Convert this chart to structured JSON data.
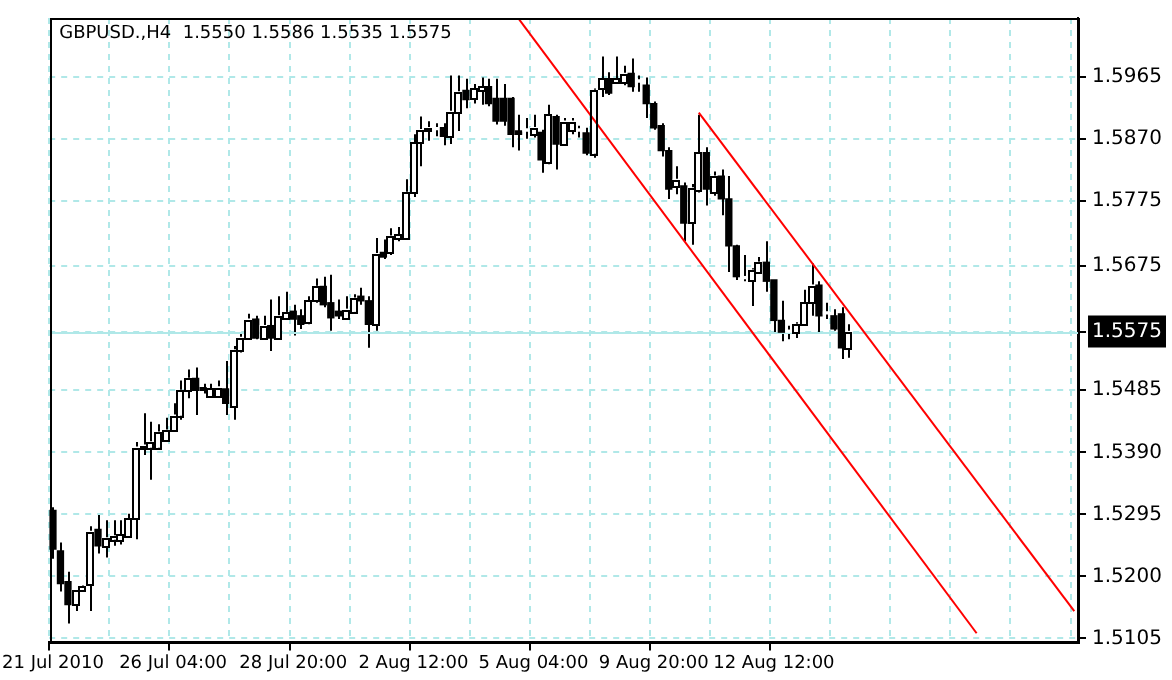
{
  "chart_data": {
    "type": "candlestick",
    "title": "GBPUSD.,H4  1.5550 1.5586 1.5535 1.5575",
    "colors": [
      "#000000",
      "#000000",
      "#000000",
      "#ffffff",
      "#ffffff",
      "#ffffff",
      "#000000",
      "#ffffff",
      "#ffffff",
      "#ffffff",
      "#ffffff",
      "#ffffff",
      "#ffffff",
      "#ffffff",
      "#ffffff",
      "#ffffff",
      "#ffffff",
      "#ffffff",
      "#ffffff",
      "#000000",
      "#000000",
      "#ffffff",
      "#ffffff",
      "#000000",
      "#ffffff",
      "#ffffff",
      "#ffffff",
      "#000000",
      "#ffffff",
      "#000000",
      "#ffffff",
      "#ffffff",
      "#000000",
      "#000000",
      "#ffffff",
      "#ffffff",
      "#000000",
      "#000000",
      "#000000",
      "#ffffff",
      "#ffffff",
      "#000000",
      "#000000",
      "#ffffff",
      "#000000",
      "#ffffff",
      "#ffffff",
      "#ffffff",
      "#ffffff",
      "#ffffff",
      "#ffffff",
      "#ffffff",
      "#000000",
      "#ffffff",
      "#ffffff",
      "#000000",
      "#ffffff",
      "#ffffff",
      "#000000",
      "#000000",
      "#000000",
      "#000000",
      "#000000",
      "#ffffff",
      "#ffffff",
      "#000000",
      "#ffffff",
      "#000000",
      "#ffffff",
      "#ffffff",
      "#ffffff",
      "#000000",
      "#ffffff",
      "#ffffff",
      "#000000",
      "#ffffff",
      "#ffffff",
      "#000000",
      "#ffffff",
      "#000000",
      "#000000",
      "#000000",
      "#000000",
      "#ffffff",
      "#000000",
      "#ffffff",
      "#ffffff",
      "#000000",
      "#ffffff",
      "#000000",
      "#000000",
      "#000000",
      "#ffffff",
      "#ffffff",
      "#ffffff",
      "#000000",
      "#000000",
      "#000000",
      "#ffffff",
      "#ffffff",
      "#ffffff",
      "#ffffff",
      "#000000",
      "#ffffff",
      "#000000",
      "#000000",
      "#ffffff",
      null,
      null,
      null,
      null,
      null,
      null,
      null,
      null,
      null,
      null,
      null,
      null,
      null,
      null,
      null,
      null,
      null,
      null,
      null,
      null,
      null,
      null,
      null,
      null,
      null,
      null,
      null,
      null,
      null,
      null
    ],
    "categories": [
      "21 Jul 2010",
      null,
      null,
      null,
      null,
      null,
      null,
      null,
      null,
      null,
      null,
      null,
      null,
      null,
      null,
      null,
      "26 Jul 04:00",
      null,
      null,
      null,
      null,
      null,
      null,
      null,
      null,
      null,
      null,
      null,
      null,
      null,
      null,
      null,
      "28 Jul 20:00",
      null,
      null,
      null,
      null,
      null,
      null,
      null,
      null,
      null,
      null,
      null,
      null,
      null,
      null,
      null,
      "2 Aug 12:00",
      null,
      null,
      null,
      null,
      null,
      null,
      null,
      null,
      null,
      null,
      null,
      null,
      null,
      null,
      null,
      "5 Aug 04:00",
      null,
      null,
      null,
      null,
      null,
      null,
      null,
      null,
      null,
      null,
      null,
      null,
      null,
      null,
      null,
      "9 Aug 20:00",
      null,
      null,
      null,
      null,
      null,
      null,
      null,
      null,
      null,
      null,
      null,
      null,
      null,
      null,
      null,
      "12 Aug 12:00",
      null,
      null,
      null,
      null,
      null,
      null,
      null,
      null,
      null,
      null,
      null,
      null,
      null,
      null,
      null,
      null,
      null,
      null,
      null,
      null,
      null,
      null,
      null,
      null,
      null,
      null,
      null,
      null,
      null,
      null,
      null,
      null,
      null,
      null,
      null,
      null,
      null,
      null,
      null,
      null
    ],
    "ohlc": [
      [
        1.5301,
        1.5306,
        1.5227,
        1.5242
      ],
      [
        1.5239,
        1.5252,
        1.5177,
        1.5189
      ],
      [
        1.5192,
        1.5207,
        1.5128,
        1.5157
      ],
      [
        1.5157,
        1.5179,
        1.5147,
        1.5179
      ],
      [
        1.5179,
        1.5187,
        1.5177,
        1.5185
      ],
      [
        1.5187,
        1.5277,
        1.5147,
        1.5269
      ],
      [
        1.5272,
        1.5294,
        1.5235,
        1.5247
      ],
      [
        1.5247,
        1.5286,
        1.5229,
        1.5259
      ],
      [
        1.5257,
        1.5286,
        1.5247,
        1.5262
      ],
      [
        1.5255,
        1.5286,
        1.5249,
        1.5264
      ],
      [
        1.5262,
        1.5296,
        1.5259,
        1.5288
      ],
      [
        1.5288,
        1.5406,
        1.5257,
        1.5398
      ],
      [
        1.5396,
        1.545,
        1.5386,
        1.5401
      ],
      [
        1.5398,
        1.5437,
        1.5348,
        1.5406
      ],
      [
        1.5398,
        1.5433,
        1.5396,
        1.5421
      ],
      [
        1.5408,
        1.5443,
        1.5406,
        1.5424
      ],
      [
        1.5424,
        1.5465,
        1.5421,
        1.5447
      ],
      [
        1.5447,
        1.55,
        1.544,
        1.5485
      ],
      [
        1.5485,
        1.5517,
        1.5473,
        1.5503
      ],
      [
        1.5503,
        1.552,
        1.5447,
        1.5485
      ],
      [
        1.5489,
        1.5495,
        1.548,
        1.5485
      ],
      [
        1.5477,
        1.5495,
        1.5475,
        1.5487
      ],
      [
        1.5477,
        1.55,
        1.5475,
        1.549
      ],
      [
        1.5487,
        1.553,
        1.5447,
        1.5465
      ],
      [
        1.546,
        1.5553,
        1.544,
        1.5547
      ],
      [
        1.5547,
        1.5574,
        1.5543,
        1.5566
      ],
      [
        1.5565,
        1.5602,
        1.5563,
        1.5594
      ],
      [
        1.5594,
        1.5599,
        1.5563,
        1.5565
      ],
      [
        1.5565,
        1.5599,
        1.5563,
        1.5584
      ],
      [
        1.5584,
        1.5624,
        1.5545,
        1.5565
      ],
      [
        1.5566,
        1.5629,
        1.5565,
        1.5599
      ],
      [
        1.5596,
        1.5636,
        1.5594,
        1.5604
      ],
      [
        1.5606,
        1.5616,
        1.5569,
        1.5594
      ],
      [
        1.5599,
        1.5609,
        1.5579,
        1.5586
      ],
      [
        1.5589,
        1.5629,
        1.5586,
        1.5622
      ],
      [
        1.5622,
        1.5656,
        1.5619,
        1.5644
      ],
      [
        1.5644,
        1.5659,
        1.5612,
        1.5616
      ],
      [
        1.5619,
        1.5662,
        1.5576,
        1.5596
      ],
      [
        1.5606,
        1.5624,
        1.5594,
        1.5599
      ],
      [
        1.5596,
        1.5629,
        1.5594,
        1.5609
      ],
      [
        1.5606,
        1.5632,
        1.5604,
        1.5626
      ],
      [
        1.5629,
        1.5642,
        1.5616,
        1.5622
      ],
      [
        1.5622,
        1.5629,
        1.555,
        1.5586
      ],
      [
        1.5586,
        1.5718,
        1.5576,
        1.5694
      ],
      [
        1.5696,
        1.5716,
        1.5686,
        1.5689
      ],
      [
        1.5696,
        1.5733,
        1.5692,
        1.5721
      ],
      [
        1.5718,
        1.5735,
        1.5713,
        1.5723
      ],
      [
        1.5718,
        1.5808,
        1.5715,
        1.5788
      ],
      [
        1.5788,
        1.5877,
        1.5781,
        1.5864
      ],
      [
        1.5864,
        1.5904,
        1.5828,
        1.5884
      ],
      [
        1.5882,
        1.5897,
        1.5867,
        1.5887
      ],
      [
        1.5884,
        1.5894,
        1.5874,
        1.5884
      ],
      [
        1.5887,
        1.5894,
        1.586,
        1.5874
      ],
      [
        1.5874,
        1.5967,
        1.5862,
        1.5912
      ],
      [
        1.5912,
        1.5967,
        1.5882,
        1.5942
      ],
      [
        1.5944,
        1.5962,
        1.5917,
        1.593
      ],
      [
        1.5932,
        1.5954,
        1.5924,
        1.5947
      ],
      [
        1.5944,
        1.5964,
        1.5922,
        1.595
      ],
      [
        1.595,
        1.5962,
        1.592,
        1.5924
      ],
      [
        1.5932,
        1.5962,
        1.5892,
        1.5897
      ],
      [
        1.5932,
        1.5954,
        1.589,
        1.5897
      ],
      [
        1.5932,
        1.5934,
        1.5857,
        1.5877
      ],
      [
        1.5882,
        1.5907,
        1.5852,
        1.5877
      ],
      [
        1.5882,
        1.5902,
        1.587,
        1.5882
      ],
      [
        1.5877,
        1.5907,
        1.5872,
        1.5887
      ],
      [
        1.588,
        1.5884,
        1.5818,
        1.5838
      ],
      [
        1.5835,
        1.5922,
        1.5831,
        1.5907
      ],
      [
        1.5904,
        1.5907,
        1.5823,
        1.5862
      ],
      [
        1.5862,
        1.5902,
        1.5859,
        1.5897
      ],
      [
        1.5882,
        1.5902,
        1.5877,
        1.5897
      ],
      [
        1.5882,
        1.589,
        1.5872,
        1.5882
      ],
      [
        1.5879,
        1.5887,
        1.5845,
        1.5848
      ],
      [
        1.5848,
        1.5947,
        1.5841,
        1.5944
      ],
      [
        1.5947,
        1.5996,
        1.5934,
        1.5962
      ],
      [
        1.5962,
        1.5972,
        1.5937,
        1.594
      ],
      [
        1.5957,
        1.5996,
        1.5954,
        1.5962
      ],
      [
        1.5957,
        1.5982,
        1.5952,
        1.597
      ],
      [
        1.597,
        1.5993,
        1.5942,
        1.595
      ],
      [
        1.5957,
        1.5967,
        1.5942,
        1.5957
      ],
      [
        1.5952,
        1.5964,
        1.5902,
        1.5924
      ],
      [
        1.5924,
        1.5927,
        1.5884,
        1.5887
      ],
      [
        1.589,
        1.5894,
        1.5843,
        1.5852
      ],
      [
        1.5852,
        1.5857,
        1.5778,
        1.5793
      ],
      [
        1.5798,
        1.5828,
        1.5785,
        1.5808
      ],
      [
        1.5798,
        1.5803,
        1.5713,
        1.5741
      ],
      [
        1.5743,
        1.5801,
        1.5708,
        1.5795
      ],
      [
        1.5791,
        1.5907,
        1.5788,
        1.5849
      ],
      [
        1.5849,
        1.5857,
        1.5768,
        1.5793
      ],
      [
        1.5788,
        1.582,
        1.5783,
        1.5813
      ],
      [
        1.5813,
        1.5823,
        1.5753,
        1.5778
      ],
      [
        1.5778,
        1.5813,
        1.5666,
        1.5706
      ],
      [
        1.5706,
        1.5708,
        1.5654,
        1.5659
      ],
      [
        1.5656,
        1.5692,
        1.5652,
        1.5656
      ],
      [
        1.5654,
        1.5672,
        1.5614,
        1.5669
      ],
      [
        1.5666,
        1.5689,
        1.5664,
        1.5681
      ],
      [
        1.5681,
        1.5713,
        1.5636,
        1.5652
      ],
      [
        1.5654,
        1.5654,
        1.5572,
        1.5592
      ],
      [
        1.5592,
        1.5622,
        1.556,
        1.5574
      ],
      [
        1.5574,
        1.5584,
        1.5563,
        1.5574
      ],
      [
        1.5574,
        1.5589,
        1.5565,
        1.5586
      ],
      [
        1.5586,
        1.5639,
        1.5584,
        1.5619
      ],
      [
        1.5619,
        1.5679,
        1.5599,
        1.5646
      ],
      [
        1.5646,
        1.5652,
        1.5574,
        1.5599
      ],
      [
        1.5602,
        1.5619,
        1.5594,
        1.5602
      ],
      [
        1.5599,
        1.5609,
        1.5576,
        1.5579
      ],
      [
        1.5602,
        1.5612,
        1.5533,
        1.555
      ],
      [
        1.555,
        1.5586,
        1.5535,
        1.5575
      ],
      null,
      null,
      null,
      null,
      null,
      null,
      null,
      null,
      null,
      null,
      null,
      null,
      null,
      null,
      null,
      null,
      null,
      null,
      null,
      null,
      null,
      null,
      null,
      null,
      null,
      null,
      null,
      null,
      null,
      null
    ],
    "series": [
      {
        "type": "line",
        "color": "#ff0000",
        "values": [
          null,
          null,
          null,
          null,
          null,
          null,
          null,
          null,
          null,
          null,
          null,
          null,
          null,
          null,
          null,
          null,
          null,
          null,
          null,
          null,
          null,
          null,
          null,
          null,
          null,
          null,
          null,
          null,
          null,
          null,
          null,
          null,
          null,
          null,
          null,
          null,
          null,
          null,
          null,
          null,
          null,
          null,
          null,
          null,
          null,
          null,
          null,
          null,
          null,
          null,
          null,
          null,
          null,
          null,
          null,
          null,
          null,
          null,
          null,
          null,
          null,
          null,
          1.6054,
          null,
          null,
          null,
          null,
          null,
          null,
          null,
          null,
          null,
          null,
          null,
          null,
          null,
          null,
          null,
          null,
          null,
          null,
          null,
          null,
          null,
          null,
          null,
          null,
          null,
          null,
          null,
          null,
          null,
          null,
          null,
          null,
          null,
          null,
          null,
          null,
          null,
          null,
          null,
          null,
          null,
          null,
          null,
          null,
          null,
          null,
          null,
          null,
          null,
          null,
          null,
          null,
          null,
          null,
          null,
          null,
          null,
          null,
          null,
          null,
          1.5113,
          null,
          null,
          null,
          null,
          null,
          null,
          null,
          null,
          null,
          null,
          null,
          null,
          null
        ]
      },
      {
        "type": "line",
        "color": "#ff0000",
        "values": [
          null,
          null,
          null,
          null,
          null,
          null,
          null,
          null,
          null,
          null,
          null,
          null,
          null,
          null,
          null,
          null,
          null,
          null,
          null,
          null,
          null,
          null,
          null,
          null,
          null,
          null,
          null,
          null,
          null,
          null,
          null,
          null,
          null,
          null,
          null,
          null,
          null,
          null,
          null,
          null,
          null,
          null,
          null,
          null,
          null,
          null,
          null,
          null,
          null,
          null,
          null,
          null,
          null,
          null,
          null,
          null,
          null,
          null,
          null,
          null,
          null,
          null,
          null,
          null,
          null,
          null,
          null,
          null,
          null,
          null,
          null,
          null,
          null,
          null,
          null,
          null,
          null,
          null,
          null,
          null,
          null,
          null,
          null,
          null,
          null,
          null,
          1.591,
          null,
          null,
          null,
          null,
          null,
          null,
          null,
          null,
          null,
          null,
          null,
          null,
          null,
          null,
          null,
          null,
          null,
          null,
          null,
          null,
          null,
          null,
          null,
          null,
          null,
          null,
          null,
          null,
          null,
          null,
          null,
          null,
          null,
          null,
          null,
          null,
          null,
          null,
          null,
          null,
          null,
          null,
          null,
          null,
          null,
          null,
          null,
          null,
          null,
          1.5147
        ]
      }
    ],
    "ylim": [
      1.5099,
      1.6055
    ],
    "yticks": [
      1.5965,
      {
        "value": 1.587,
        "label": "1.5870"
      },
      1.5775,
      1.5675,
      1.5575,
      1.5485,
      {
        "value": 1.539,
        "label": "1.5390"
      },
      1.5295,
      {
        "value": 1.52,
        "label": "1.5200"
      },
      1.5105
    ],
    "ref_lines": [
      {
        "axis": "y",
        "value": 1.5575,
        "color": "#b0e8e8"
      }
    ],
    "grid": true,
    "legend": false,
    "marker": "none"
  }
}
